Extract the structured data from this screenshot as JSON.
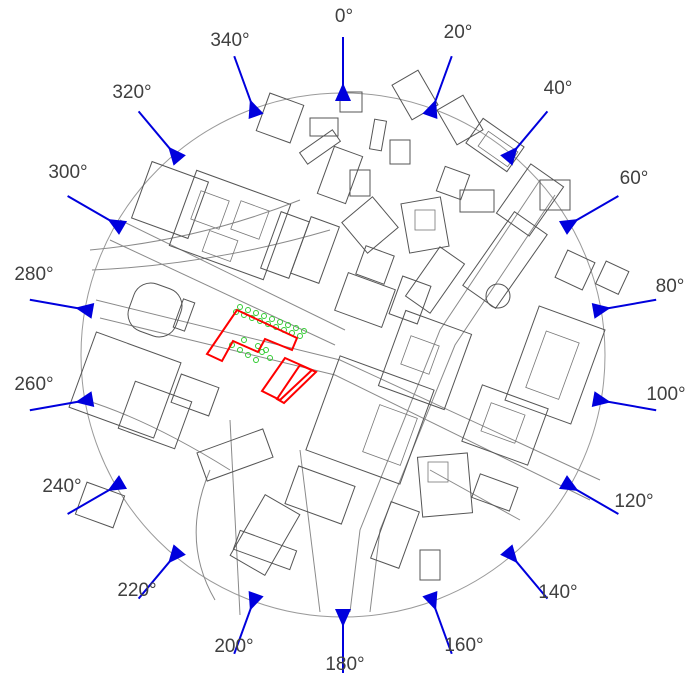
{
  "map": {
    "direction_labels": [
      "0°",
      "20°",
      "40°",
      "60°",
      "80°",
      "100°",
      "120°",
      "140°",
      "160°",
      "180°",
      "200°",
      "220°",
      "240°",
      "260°",
      "280°",
      "300°",
      "320°",
      "340°"
    ],
    "colors": {
      "arrow": "#0000dd",
      "site_outline": "#ff0000",
      "trees": "#33cc33",
      "buildings": "#555555",
      "label_text": "#404040"
    },
    "icons": {
      "arrow": "direction-arrow-icon",
      "site": "site-outline-icon",
      "tree": "tree-icon"
    }
  }
}
